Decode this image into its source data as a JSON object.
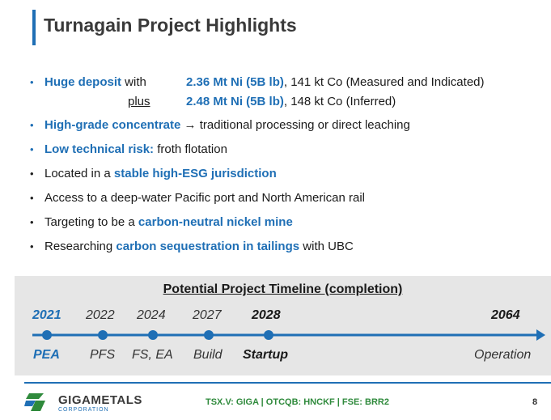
{
  "title": "Turnagain Project Highlights",
  "bullets": [
    {
      "hl": "Huge deposit",
      "rest": " with"
    },
    {
      "hl": "High-grade concentrate",
      "rest": " traditional processing or direct leaching"
    },
    {
      "hl": "Low technical risk:",
      "rest": " froth flotation"
    },
    {
      "pre": "Located in a ",
      "hl": "stable high-ESG jurisdiction"
    },
    {
      "pre": "Access to a deep-water Pacific port and North American rail"
    },
    {
      "pre": "Targeting to be a ",
      "hl": "carbon-neutral nickel mine"
    },
    {
      "pre": "Researching ",
      "hl": "carbon sequestration in tailings",
      "post": " with UBC"
    }
  ],
  "deposit": {
    "measured_value": "2.36 Mt Ni (5B lb)",
    "measured_rest": ", 141 kt Co (Measured and Indicated)",
    "plus_label": "plus",
    "inferred_value": "2.48 Mt Ni (5B lb)",
    "inferred_rest": ", 148 kt Co (Inferred)"
  },
  "timeline": {
    "title": "Potential Project Timeline (completion)",
    "milestones": [
      {
        "year": "2021",
        "phase": "PEA"
      },
      {
        "year": "2022",
        "phase": "PFS"
      },
      {
        "year": "2024",
        "phase": "FS, EA"
      },
      {
        "year": "2027",
        "phase": "Build"
      },
      {
        "year": "2028",
        "phase": "Startup"
      },
      {
        "year": "2064",
        "phase": "Operation"
      }
    ]
  },
  "footer": {
    "company": "GIGAMETALS",
    "company_sub": "CORPORATION",
    "tickers": "TSX.V: GIGA | OTCQB: HNCKF | FSE: BRR2",
    "page": "8"
  },
  "colors": {
    "accent": "#1f6fb5",
    "footer_green": "#2f8a3c",
    "timeline_bg": "#e6e6e6"
  }
}
